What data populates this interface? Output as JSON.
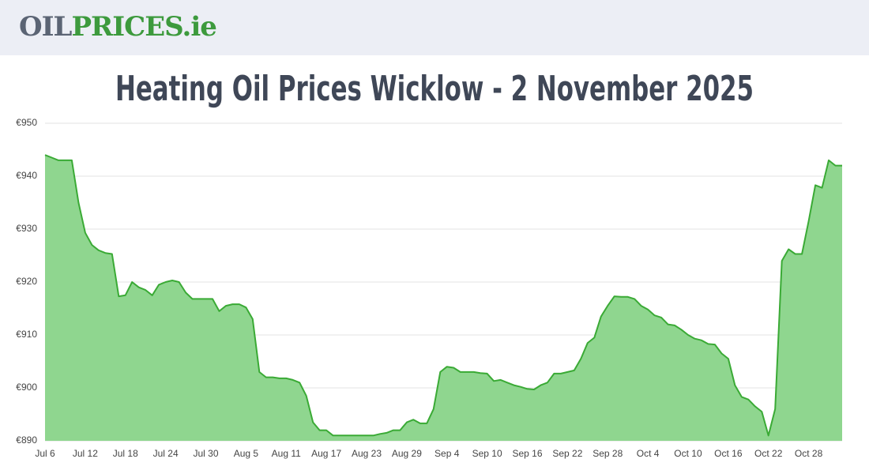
{
  "header": {
    "logo_part1": "OIL",
    "logo_part2": "PRICES.ie"
  },
  "chart_data": {
    "type": "area",
    "title": "Heating Oil Prices Wicklow - 2 November 2025",
    "categories": [
      "Jul 6",
      null,
      null,
      null,
      null,
      null,
      "Jul 12",
      null,
      null,
      null,
      null,
      null,
      "Jul 18",
      null,
      null,
      null,
      null,
      null,
      "Jul 24",
      null,
      null,
      null,
      null,
      null,
      "Jul 30",
      null,
      null,
      null,
      null,
      null,
      "Aug 5",
      null,
      null,
      null,
      null,
      null,
      "Aug 11",
      null,
      null,
      null,
      null,
      null,
      "Aug 17",
      null,
      null,
      null,
      null,
      null,
      "Aug 23",
      null,
      null,
      null,
      null,
      null,
      "Aug 29",
      null,
      null,
      null,
      null,
      null,
      "Sep 4",
      null,
      null,
      null,
      null,
      null,
      "Sep 10",
      null,
      null,
      null,
      null,
      null,
      "Sep 16",
      null,
      null,
      null,
      null,
      null,
      "Sep 22",
      null,
      null,
      null,
      null,
      null,
      "Sep 28",
      null,
      null,
      null,
      null,
      null,
      "Oct 4",
      null,
      null,
      null,
      null,
      null,
      "Oct 10",
      null,
      null,
      null,
      null,
      null,
      "Oct 16",
      null,
      null,
      null,
      null,
      null,
      "Oct 22",
      null,
      null,
      null,
      null,
      null,
      "Oct 28",
      null,
      null,
      null,
      null,
      null
    ],
    "values": [
      944,
      943.5,
      943,
      943,
      943,
      935,
      929.3,
      927,
      926,
      925.5,
      925.3,
      917.3,
      917.5,
      920,
      919,
      918.5,
      917.5,
      919.5,
      920,
      920.3,
      920,
      918,
      916.8,
      916.8,
      916.8,
      916.8,
      914.5,
      915.5,
      915.8,
      915.8,
      915.2,
      913,
      903,
      902,
      902,
      901.8,
      901.8,
      901.5,
      901,
      898.5,
      893.5,
      892,
      892,
      891,
      891,
      891,
      891,
      891,
      891,
      891,
      891.3,
      891.5,
      892,
      892,
      893.5,
      894,
      893.3,
      893.3,
      896,
      903,
      904,
      903.8,
      903,
      903,
      903,
      902.8,
      902.7,
      901.3,
      901.5,
      901,
      900.5,
      900.2,
      899.8,
      899.7,
      900.5,
      901,
      902.7,
      902.7,
      903,
      903.3,
      905.5,
      908.5,
      909.5,
      913.5,
      915.5,
      917.3,
      917.2,
      917.2,
      916.8,
      915.5,
      914.8,
      913.7,
      913.3,
      912,
      911.8,
      911,
      910,
      909.3,
      909,
      908.3,
      908.2,
      906.5,
      905.5,
      900.5,
      898.3,
      897.8,
      896.5,
      895.5,
      891,
      896,
      924,
      926.2,
      925.3,
      925.3,
      931.5,
      938.3,
      937.8,
      943,
      942,
      942
    ],
    "color": "#3aaa35",
    "fill_color": "#8fd68f",
    "ylim": [
      890,
      950
    ],
    "yticks": [
      {
        "value": 890,
        "label": "€890"
      },
      {
        "value": 900,
        "label": "€900"
      },
      {
        "value": 910,
        "label": "€910"
      },
      {
        "value": 920,
        "label": "€920"
      },
      {
        "value": 930,
        "label": "€930"
      },
      {
        "value": 940,
        "label": "€940"
      },
      {
        "value": 950,
        "label": "€950"
      }
    ],
    "grid": true
  }
}
